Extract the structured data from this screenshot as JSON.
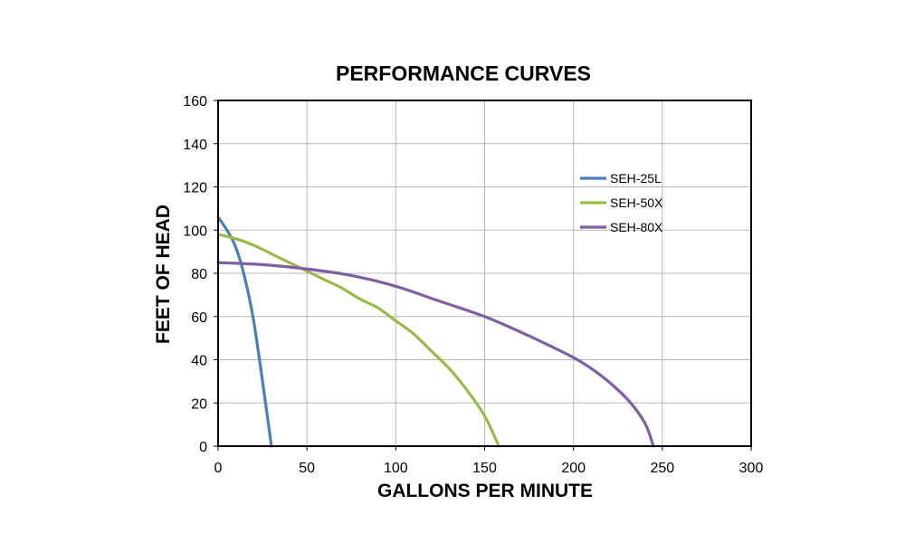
{
  "chart_data": {
    "type": "line",
    "title": "PERFORMANCE CURVES",
    "xlabel": "GALLONS PER MINUTE",
    "ylabel": "FEET OF HEAD",
    "xlim": [
      0,
      300
    ],
    "ylim": [
      0,
      160
    ],
    "x_ticks": [
      0,
      50,
      100,
      150,
      200,
      250,
      300
    ],
    "y_ticks": [
      0,
      20,
      40,
      60,
      80,
      100,
      120,
      140,
      160
    ],
    "grid": true,
    "legend_position": "top-right",
    "series": [
      {
        "name": "SEH-25L",
        "color": "#4a7ebb",
        "points": [
          [
            0,
            106
          ],
          [
            5,
            100
          ],
          [
            10,
            92
          ],
          [
            15,
            78
          ],
          [
            20,
            58
          ],
          [
            25,
            30
          ],
          [
            30,
            0
          ]
        ]
      },
      {
        "name": "SEH-50X",
        "color": "#98bb4a",
        "points": [
          [
            0,
            98
          ],
          [
            10,
            96
          ],
          [
            20,
            93
          ],
          [
            30,
            89
          ],
          [
            40,
            85
          ],
          [
            50,
            81
          ],
          [
            60,
            77
          ],
          [
            70,
            73
          ],
          [
            80,
            68
          ],
          [
            90,
            64
          ],
          [
            100,
            58
          ],
          [
            110,
            52
          ],
          [
            120,
            44
          ],
          [
            130,
            36
          ],
          [
            140,
            26
          ],
          [
            150,
            14
          ],
          [
            158,
            0
          ]
        ]
      },
      {
        "name": "SEH-80X",
        "color": "#7e5fa3",
        "points": [
          [
            0,
            85
          ],
          [
            25,
            84
          ],
          [
            50,
            82
          ],
          [
            75,
            79
          ],
          [
            100,
            74
          ],
          [
            125,
            67
          ],
          [
            150,
            60
          ],
          [
            175,
            51
          ],
          [
            200,
            41
          ],
          [
            215,
            33
          ],
          [
            230,
            22
          ],
          [
            240,
            11
          ],
          [
            245,
            0
          ]
        ]
      }
    ]
  }
}
